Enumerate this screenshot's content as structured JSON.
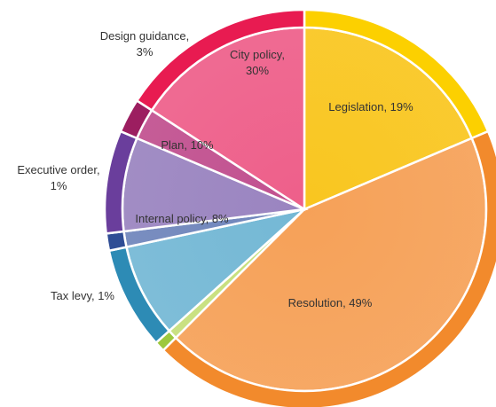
{
  "chart_data": {
    "type": "pie",
    "title": "",
    "slices": [
      {
        "label": "Legislation, 19%",
        "value": 19,
        "color": "#f9c61f",
        "edge": "#fcd000"
      },
      {
        "label": "Resolution, 49%",
        "value": 49,
        "color": "#f6a158",
        "edge": "#f28a2c"
      },
      {
        "label": "Tax levy, 1%",
        "value": 1,
        "color": "#c6df7a",
        "edge": "#9dc83e"
      },
      {
        "label": "Internal policy, 8%",
        "value": 8,
        "color": "#74b8d5",
        "edge": "#2d8bb5"
      },
      {
        "label": "Executive order, 1%",
        "value": 1,
        "color": "#6f85bb",
        "edge": "#2f4d95"
      },
      {
        "label": "Plan, 10%",
        "value": 10,
        "color": "#9a84c0",
        "edge": "#6a3e9c"
      },
      {
        "label": "Design guidance, 3%",
        "value": 3,
        "color": "#c1508f",
        "edge": "#9c1e60"
      },
      {
        "label": "City policy, 30%",
        "value": 30,
        "color": "#ee5f8a",
        "edge": "#e81b51"
      }
    ],
    "labels_outside": [
      {
        "lines": [
          "Design guidance,",
          "3%"
        ]
      },
      {
        "lines": [
          "Executive order,",
          "1%"
        ]
      },
      {
        "lines": [
          "Tax levy, 1%"
        ]
      }
    ]
  }
}
